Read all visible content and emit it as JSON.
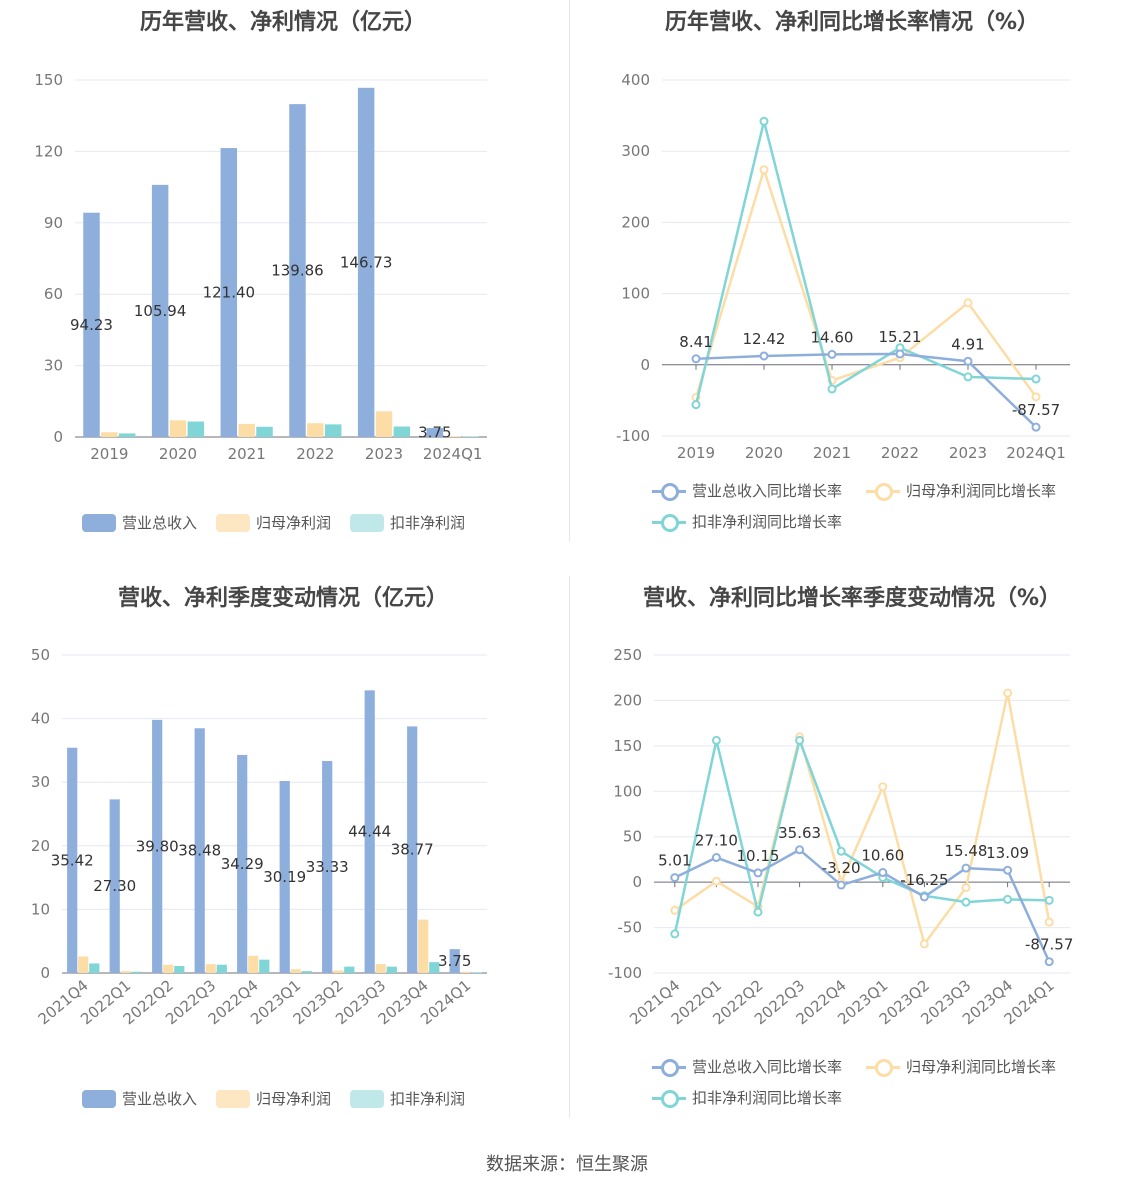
{
  "colors": {
    "revenue": "#8eaedc",
    "net_profit": "#fddda6",
    "deducted_profit": "#80d5d6",
    "revenue_legend": "#8eaedc",
    "net_legend": "#fde6c2",
    "deducted_legend": "#c0e8ea"
  },
  "panels": {
    "annual_amounts": {
      "title": "历年营收、净利情况（亿元）",
      "legend": [
        "营业总收入",
        "归母净利润",
        "扣非净利润"
      ]
    },
    "annual_growth": {
      "title": "历年营收、净利同比增长率情况（%）",
      "legend": [
        "营业总收入同比增长率",
        "归母净利润同比增长率",
        "扣非净利润同比增长率"
      ]
    },
    "quarterly_amounts": {
      "title": "营收、净利季度变动情况（亿元）",
      "legend": [
        "营业总收入",
        "归母净利润",
        "扣非净利润"
      ]
    },
    "quarterly_growth": {
      "title": "营收、净利同比增长率季度变动情况（%）",
      "legend": [
        "营业总收入同比增长率",
        "归母净利润同比增长率",
        "扣非净利润同比增长率"
      ]
    }
  },
  "source": "数据来源：恒生聚源",
  "chart_data": [
    {
      "type": "bar",
      "title": "历年营收、净利情况（亿元）",
      "categories": [
        "2019",
        "2020",
        "2021",
        "2022",
        "2023",
        "2024Q1"
      ],
      "ylim": [
        0,
        150
      ],
      "yticks": [
        0,
        30,
        60,
        90,
        120,
        150
      ],
      "series": [
        {
          "name": "营业总收入",
          "values": [
            94.23,
            105.94,
            121.4,
            139.86,
            146.73,
            3.75
          ],
          "labels": [
            "94.23",
            "105.94",
            "121.40",
            "139.86",
            "146.73",
            "3.75"
          ]
        },
        {
          "name": "归母净利润",
          "values": [
            2.0,
            7.0,
            5.5,
            5.8,
            10.8,
            0.3
          ]
        },
        {
          "name": "扣非净利润",
          "values": [
            1.5,
            6.5,
            4.3,
            5.3,
            4.4,
            0.2
          ]
        }
      ],
      "legend": "bottom"
    },
    {
      "type": "line",
      "title": "历年营收、净利同比增长率情况（%）",
      "categories": [
        "2019",
        "2020",
        "2021",
        "2022",
        "2023",
        "2024Q1"
      ],
      "ylim": [
        -100,
        400
      ],
      "yticks": [
        -100,
        0,
        100,
        200,
        300,
        400
      ],
      "series": [
        {
          "name": "营业总收入同比增长率",
          "values": [
            8.41,
            12.42,
            14.6,
            15.21,
            4.91,
            -87.57
          ],
          "labels": [
            "8.41",
            "12.42",
            "14.60",
            "15.21",
            "4.91",
            "-87.57"
          ]
        },
        {
          "name": "归母净利润同比增长率",
          "values": [
            -46,
            274,
            -22,
            10,
            87,
            -45
          ]
        },
        {
          "name": "扣非净利润同比增长率",
          "values": [
            -56,
            342,
            -34,
            24,
            -17,
            -20
          ]
        }
      ],
      "legend": "bottom"
    },
    {
      "type": "bar",
      "title": "营收、净利季度变动情况（亿元）",
      "categories": [
        "2021Q4",
        "2022Q1",
        "2022Q2",
        "2022Q3",
        "2022Q4",
        "2023Q1",
        "2023Q2",
        "2023Q3",
        "2023Q4",
        "2024Q1"
      ],
      "ylim": [
        0,
        50
      ],
      "yticks": [
        0,
        10,
        20,
        30,
        40,
        50
      ],
      "series": [
        {
          "name": "营业总收入",
          "values": [
            35.42,
            27.3,
            39.8,
            38.48,
            34.29,
            30.19,
            33.33,
            44.44,
            38.77,
            3.75
          ],
          "labels": [
            "35.42",
            "27.30",
            "39.80",
            "38.48",
            "34.29",
            "30.19",
            "33.33",
            "44.44",
            "38.77",
            "3.75"
          ]
        },
        {
          "name": "归母净利润",
          "values": [
            2.6,
            0.3,
            1.3,
            1.4,
            2.7,
            0.6,
            0.4,
            1.4,
            8.4,
            0.2
          ]
        },
        {
          "name": "扣非净利润",
          "values": [
            1.5,
            0.2,
            1.1,
            1.3,
            2.1,
            0.3,
            1.0,
            1.0,
            1.7,
            0.1
          ]
        }
      ],
      "legend": "bottom"
    },
    {
      "type": "line",
      "title": "营收、净利同比增长率季度变动情况（%）",
      "categories": [
        "2021Q4",
        "2022Q1",
        "2022Q2",
        "2022Q3",
        "2022Q4",
        "2023Q1",
        "2023Q2",
        "2023Q3",
        "2023Q4",
        "2024Q1"
      ],
      "ylim": [
        -100,
        250
      ],
      "yticks": [
        -100,
        -50,
        0,
        50,
        100,
        150,
        200,
        250
      ],
      "series": [
        {
          "name": "营业总收入同比增长率",
          "values": [
            5.01,
            27.1,
            10.15,
            35.63,
            -3.2,
            10.6,
            -16.25,
            15.48,
            13.09,
            -87.57
          ],
          "labels": [
            "5.01",
            "27.10",
            "10.15",
            "35.63",
            "-3.20",
            "10.60",
            "-16.25",
            "15.48",
            "13.09",
            "-87.57"
          ]
        },
        {
          "name": "归母净利润同比增长率",
          "values": [
            -31,
            1,
            -27,
            160,
            0,
            105,
            -68,
            -6,
            208,
            -44
          ]
        },
        {
          "name": "扣非净利润同比增长率",
          "values": [
            -57,
            156,
            -33,
            156,
            34,
            5,
            -15,
            -22,
            -19,
            -20
          ]
        }
      ],
      "legend": "bottom"
    }
  ]
}
